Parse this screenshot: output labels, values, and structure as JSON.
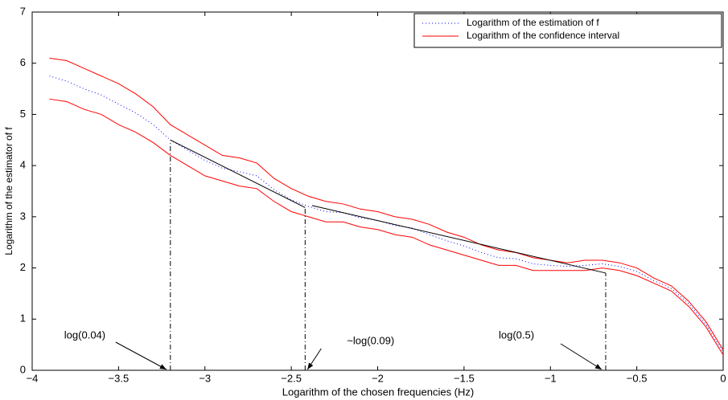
{
  "chart_data": {
    "type": "line",
    "xlabel": "Logarithm of the chosen frequencies (Hz)",
    "ylabel": "Logarithm of the estimator of f",
    "xlim": [
      -4,
      0
    ],
    "ylim": [
      0,
      7
    ],
    "xticks": [
      {
        "value": -4,
        "label": "−4"
      },
      {
        "value": -3.5,
        "label": "−3.5"
      },
      {
        "value": -3,
        "label": "−3"
      },
      {
        "value": -2.5,
        "label": "−2.5"
      },
      {
        "value": -2,
        "label": "−2"
      },
      {
        "value": -1.5,
        "label": "−1.5"
      },
      {
        "value": -1,
        "label": "−1"
      },
      {
        "value": -0.5,
        "label": "−0.5"
      },
      0
    ],
    "yticks": [
      0,
      1,
      2,
      3,
      4,
      5,
      6,
      7
    ],
    "legend": "top-right",
    "x": [
      -3.9,
      -3.8,
      -3.7,
      -3.6,
      -3.5,
      -3.4,
      -3.3,
      -3.2,
      -3.1,
      -3.0,
      -2.9,
      -2.8,
      -2.7,
      -2.6,
      -2.5,
      -2.4,
      -2.3,
      -2.2,
      -2.1,
      -2.0,
      -1.9,
      -1.8,
      -1.7,
      -1.6,
      -1.5,
      -1.4,
      -1.3,
      -1.2,
      -1.1,
      -1.0,
      -0.9,
      -0.8,
      -0.7,
      -0.6,
      -0.5,
      -0.4,
      -0.3,
      -0.2,
      -0.1,
      0
    ],
    "series": [
      {
        "name": "Logarithm of the estimation of f",
        "color": "#0000ff",
        "style": "dotted",
        "values": [
          5.75,
          5.65,
          5.5,
          5.38,
          5.2,
          5.03,
          4.8,
          4.5,
          4.3,
          4.1,
          3.95,
          3.88,
          3.8,
          3.53,
          3.33,
          3.2,
          3.1,
          3.08,
          2.98,
          2.93,
          2.83,
          2.78,
          2.65,
          2.53,
          2.43,
          2.3,
          2.2,
          2.18,
          2.08,
          2.05,
          2.03,
          2.05,
          2.08,
          2.03,
          1.93,
          1.75,
          1.6,
          1.3,
          0.9,
          0.35
        ]
      },
      {
        "name": "Logarithm of the confidence interval",
        "color": "#ff0000",
        "style": "solid",
        "values": [
          6.1,
          6.05,
          5.9,
          5.75,
          5.6,
          5.4,
          5.15,
          4.8,
          4.6,
          4.4,
          4.2,
          4.15,
          4.05,
          3.75,
          3.55,
          3.4,
          3.3,
          3.25,
          3.15,
          3.1,
          3.0,
          2.95,
          2.85,
          2.7,
          2.6,
          2.45,
          2.35,
          2.3,
          2.2,
          2.15,
          2.1,
          2.15,
          2.15,
          2.1,
          2.0,
          1.8,
          1.65,
          1.35,
          0.95,
          0.4
        ]
      },
      {
        "color": "#ff0000",
        "style": "solid",
        "values": [
          5.3,
          5.25,
          5.1,
          5.0,
          4.8,
          4.65,
          4.45,
          4.2,
          4.0,
          3.8,
          3.7,
          3.6,
          3.55,
          3.3,
          3.1,
          3.0,
          2.9,
          2.9,
          2.8,
          2.75,
          2.65,
          2.6,
          2.45,
          2.35,
          2.25,
          2.15,
          2.05,
          2.05,
          1.95,
          1.95,
          1.95,
          1.95,
          2.0,
          1.95,
          1.85,
          1.7,
          1.55,
          1.25,
          0.85,
          0.3
        ]
      }
    ],
    "fits": [
      {
        "color": "#000000",
        "x": [
          -3.2,
          -2.42
        ],
        "values": [
          4.5,
          3.18
        ]
      },
      {
        "color": "#000000",
        "x": [
          -2.38,
          -0.68
        ],
        "values": [
          3.22,
          1.9
        ]
      }
    ],
    "annotations": [
      {
        "label": "log(0.04)",
        "x": -3.2,
        "y": 4.5
      },
      {
        "label": "~log(0.09)",
        "x": -2.42,
        "y": 3.18
      },
      {
        "label": "log(0.5)",
        "x": -0.68,
        "y": 1.9
      }
    ]
  }
}
